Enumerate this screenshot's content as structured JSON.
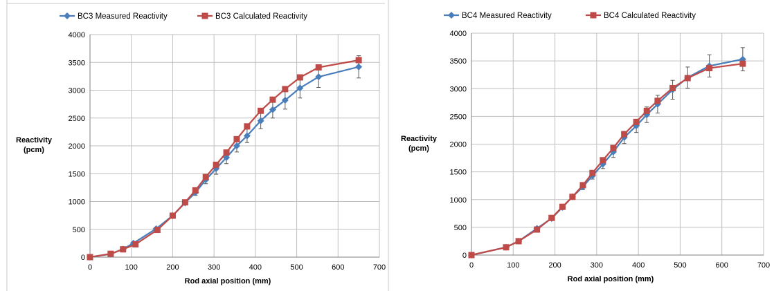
{
  "chart_data": [
    {
      "type": "line",
      "title": "",
      "xlabel": "Rod axial position (mm)",
      "ylabel": "Reactivity (pcm)",
      "ylabel_lines": [
        "Reactivity",
        "(pcm)"
      ],
      "xlim": [
        0,
        700
      ],
      "ylim": [
        0,
        4000
      ],
      "xticks": [
        0,
        100,
        200,
        300,
        400,
        500,
        600,
        700
      ],
      "yticks": [
        0,
        500,
        1000,
        1500,
        2000,
        2500,
        3000,
        3500,
        4000
      ],
      "grid": true,
      "legend_position": "top",
      "series": [
        {
          "name": "BC3 Measured Reactivity",
          "color": "#4a7ebb",
          "marker": "diamond",
          "x": [
            0,
            50,
            80,
            105,
            160,
            200,
            230,
            255,
            280,
            305,
            330,
            355,
            380,
            413,
            442,
            472,
            508,
            553,
            650
          ],
          "y": [
            0,
            55,
            145,
            250,
            510,
            745,
            975,
            1160,
            1390,
            1590,
            1790,
            2000,
            2180,
            2450,
            2650,
            2820,
            3040,
            3240,
            3420
          ],
          "error": [
            0,
            0,
            0,
            0,
            0,
            0,
            30,
            50,
            70,
            100,
            110,
            110,
            120,
            140,
            150,
            160,
            180,
            190,
            200
          ]
        },
        {
          "name": "BC3 Calculated Reactivity",
          "color": "#be4b48",
          "marker": "square",
          "x": [
            0,
            50,
            80,
            110,
            163,
            200,
            230,
            255,
            280,
            305,
            330,
            355,
            380,
            413,
            442,
            472,
            508,
            553,
            650
          ],
          "y": [
            0,
            60,
            140,
            230,
            490,
            745,
            985,
            1200,
            1440,
            1660,
            1880,
            2120,
            2350,
            2630,
            2830,
            3020,
            3230,
            3410,
            3540
          ],
          "error": []
        }
      ]
    },
    {
      "type": "line",
      "title": "",
      "xlabel": "Rod axial position (mm)",
      "ylabel": "Reactivity (pcm)",
      "ylabel_lines": [
        "Reactivity",
        "(pcm)"
      ],
      "xlim": [
        0,
        700
      ],
      "ylim": [
        0,
        4000
      ],
      "xticks": [
        0,
        100,
        200,
        300,
        400,
        500,
        600,
        700
      ],
      "yticks": [
        0,
        500,
        1000,
        1500,
        2000,
        2500,
        3000,
        3500,
        4000
      ],
      "grid": true,
      "legend_position": "top",
      "series": [
        {
          "name": "BC4 Measured Reactivity",
          "color": "#4a7ebb",
          "marker": "diamond",
          "x": [
            0,
            83,
            113,
            157,
            192,
            218,
            242,
            267,
            290,
            315,
            340,
            366,
            395,
            420,
            446,
            482,
            518,
            570,
            650
          ],
          "y": [
            0,
            140,
            250,
            480,
            660,
            860,
            1050,
            1230,
            1430,
            1640,
            1860,
            2120,
            2330,
            2530,
            2720,
            2980,
            3200,
            3410,
            3530
          ],
          "error": [
            0,
            0,
            0,
            0,
            0,
            30,
            40,
            50,
            60,
            80,
            100,
            110,
            120,
            140,
            160,
            170,
            190,
            200,
            210
          ]
        },
        {
          "name": "BC4 Calculated Reactivity",
          "color": "#be4b48",
          "marker": "square",
          "x": [
            0,
            83,
            113,
            157,
            192,
            218,
            242,
            267,
            290,
            315,
            340,
            366,
            395,
            420,
            446,
            482,
            518,
            570,
            650
          ],
          "y": [
            0,
            140,
            250,
            460,
            670,
            870,
            1050,
            1260,
            1480,
            1710,
            1930,
            2180,
            2400,
            2600,
            2780,
            3010,
            3190,
            3370,
            3450
          ],
          "error": []
        }
      ]
    }
  ]
}
